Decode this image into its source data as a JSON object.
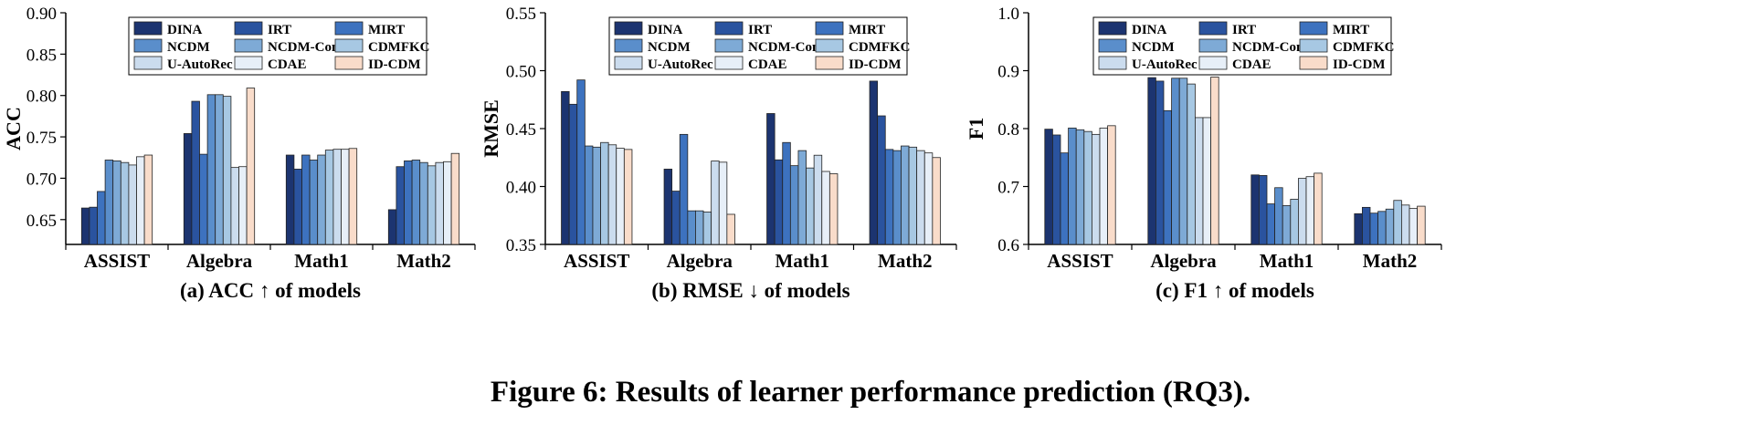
{
  "figure_caption": "Figure 6: Results of learner performance prediction (RQ3).",
  "colors": {
    "DINA": "#1c3470",
    "IRT": "#2a539f",
    "MIRT": "#3d72bf",
    "NCDM": "#5a8ecb",
    "NCDM-Const": "#7eaad6",
    "CDMFKC": "#a7c8e3",
    "U-AutoRec": "#cbdcee",
    "CDAE": "#e7eff8",
    "ID-CDM": "#f9dcca"
  },
  "chart_data": [
    {
      "type": "bar",
      "caption": "(a) ACC ↑ of models",
      "ylabel": "ACC",
      "xlabel": "",
      "ylim": [
        0.62,
        0.9
      ],
      "yticks": [
        "0.65",
        "0.70",
        "0.75",
        "0.80",
        "0.85",
        "0.90"
      ],
      "grid": false,
      "legend_position": "top-center",
      "categories": [
        "ASSIST",
        "Algebra",
        "Math1",
        "Math2"
      ],
      "series": [
        {
          "name": "DINA",
          "values": [
            0.664,
            0.754,
            0.728,
            0.662
          ]
        },
        {
          "name": "IRT",
          "values": [
            0.665,
            0.793,
            0.711,
            0.714
          ]
        },
        {
          "name": "MIRT",
          "values": [
            0.684,
            0.729,
            0.728,
            0.721
          ]
        },
        {
          "name": "NCDM",
          "values": [
            0.722,
            0.801,
            0.722,
            0.722
          ]
        },
        {
          "name": "NCDM-Const",
          "values": [
            0.721,
            0.801,
            0.728,
            0.719
          ]
        },
        {
          "name": "CDMFKC",
          "values": [
            0.719,
            0.799,
            0.734,
            0.715
          ]
        },
        {
          "name": "U-AutoRec",
          "values": [
            0.716,
            0.713,
            0.735,
            0.719
          ]
        },
        {
          "name": "CDAE",
          "values": [
            0.726,
            0.714,
            0.735,
            0.72
          ]
        },
        {
          "name": "ID-CDM",
          "values": [
            0.728,
            0.809,
            0.736,
            0.73
          ]
        }
      ]
    },
    {
      "type": "bar",
      "caption": "(b) RMSE ↓ of models",
      "ylabel": "RMSE",
      "xlabel": "",
      "ylim": [
        0.35,
        0.55
      ],
      "yticks": [
        "0.35",
        "0.40",
        "0.45",
        "0.50",
        "0.55"
      ],
      "grid": false,
      "legend_position": "top-center",
      "categories": [
        "ASSIST",
        "Algebra",
        "Math1",
        "Math2"
      ],
      "series": [
        {
          "name": "DINA",
          "values": [
            0.482,
            0.415,
            0.463,
            0.491
          ]
        },
        {
          "name": "IRT",
          "values": [
            0.471,
            0.396,
            0.423,
            0.461
          ]
        },
        {
          "name": "MIRT",
          "values": [
            0.492,
            0.445,
            0.438,
            0.432
          ]
        },
        {
          "name": "NCDM",
          "values": [
            0.435,
            0.379,
            0.418,
            0.431
          ]
        },
        {
          "name": "NCDM-Const",
          "values": [
            0.434,
            0.379,
            0.431,
            0.435
          ]
        },
        {
          "name": "CDMFKC",
          "values": [
            0.438,
            0.378,
            0.416,
            0.434
          ]
        },
        {
          "name": "U-AutoRec",
          "values": [
            0.436,
            0.422,
            0.427,
            0.431
          ]
        },
        {
          "name": "CDAE",
          "values": [
            0.433,
            0.421,
            0.413,
            0.429
          ]
        },
        {
          "name": "ID-CDM",
          "values": [
            0.432,
            0.376,
            0.411,
            0.425
          ]
        }
      ]
    },
    {
      "type": "bar",
      "caption": "(c) F1 ↑ of models",
      "ylabel": "F1",
      "xlabel": "",
      "ylim": [
        0.6,
        1.0
      ],
      "yticks": [
        "0.6",
        "0.7",
        "0.8",
        "0.9",
        "1.0"
      ],
      "grid": false,
      "legend_position": "top-center",
      "categories": [
        "ASSIST",
        "Algebra",
        "Math1",
        "Math2"
      ],
      "series": [
        {
          "name": "DINA",
          "values": [
            0.799,
            0.888,
            0.72,
            0.653
          ]
        },
        {
          "name": "IRT",
          "values": [
            0.789,
            0.882,
            0.719,
            0.664
          ]
        },
        {
          "name": "MIRT",
          "values": [
            0.758,
            0.831,
            0.67,
            0.654
          ]
        },
        {
          "name": "NCDM",
          "values": [
            0.801,
            0.887,
            0.698,
            0.657
          ]
        },
        {
          "name": "NCDM-Const",
          "values": [
            0.798,
            0.887,
            0.667,
            0.661
          ]
        },
        {
          "name": "CDMFKC",
          "values": [
            0.795,
            0.877,
            0.678,
            0.676
          ]
        },
        {
          "name": "U-AutoRec",
          "values": [
            0.79,
            0.819,
            0.714,
            0.668
          ]
        },
        {
          "name": "CDAE",
          "values": [
            0.801,
            0.819,
            0.717,
            0.662
          ]
        },
        {
          "name": "ID-CDM",
          "values": [
            0.805,
            0.889,
            0.723,
            0.666
          ]
        }
      ]
    }
  ]
}
